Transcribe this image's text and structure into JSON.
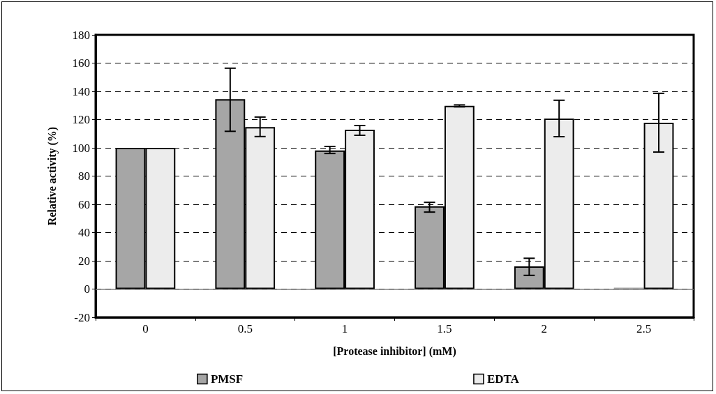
{
  "chart_data": {
    "type": "bar",
    "xlabel": "[Protease inhibitor] (mM)",
    "ylabel": "Relative activity (%)",
    "categories": [
      "0",
      "0.5",
      "1",
      "1.5",
      "2",
      "2.5"
    ],
    "series": [
      {
        "name": "PMSF",
        "color": "#a6a6a6",
        "values": [
          100,
          134.5,
          98.2,
          58.6,
          16,
          1
        ],
        "errors": [
          null,
          [
            111.7,
            156.4
          ],
          [
            96,
            101
          ],
          [
            54.5,
            61.4
          ],
          [
            9.7,
            21.8
          ],
          null
        ]
      },
      {
        "name": "EDTA",
        "color": "#ececec",
        "values": [
          100,
          114.7,
          112.9,
          129.7,
          120.8,
          117.8
        ],
        "errors": [
          null,
          [
            108,
            121.8
          ],
          [
            108.9,
            115.8
          ],
          [
            129,
            130.4
          ],
          [
            107.9,
            133.7
          ],
          [
            97,
            138.6
          ]
        ]
      }
    ],
    "ylim": [
      -20,
      180
    ],
    "yticks": [
      -20,
      0,
      20,
      40,
      60,
      80,
      100,
      120,
      140,
      160,
      180
    ],
    "ref_lines": [
      {
        "axis": "y",
        "value": 0,
        "color": "#808080"
      }
    ],
    "grid": "y",
    "legend": "bottom"
  }
}
